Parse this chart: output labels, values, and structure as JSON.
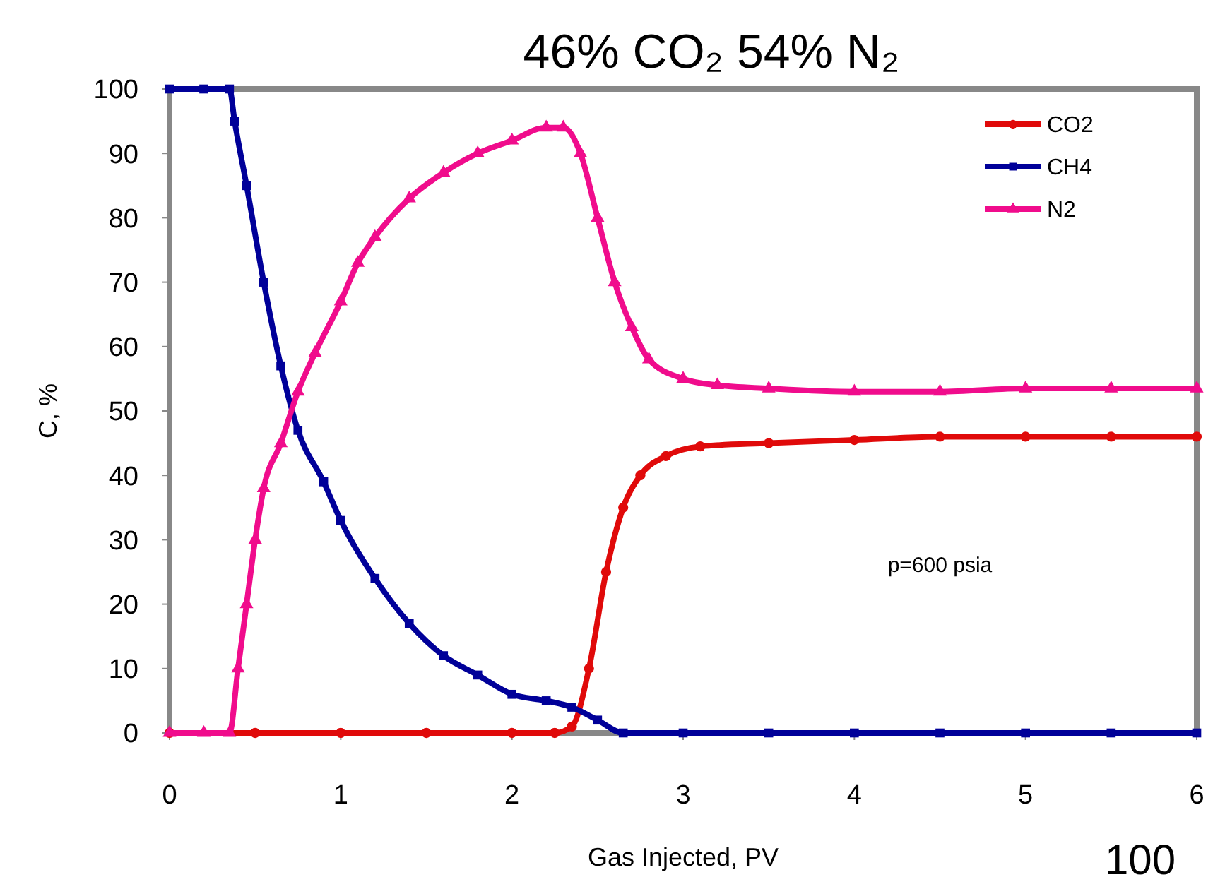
{
  "chart_data": {
    "type": "line",
    "title": "46% CO₂ 54% N₂",
    "xlabel": "Gas Injected, PV",
    "ylabel": "C, %",
    "xlim": [
      0,
      6
    ],
    "xticks": [
      0,
      1,
      2,
      3,
      4,
      5,
      6
    ],
    "ylim": [
      0,
      100
    ],
    "yticks": [
      0,
      10,
      20,
      30,
      40,
      50,
      60,
      70,
      80,
      90,
      100
    ],
    "grid": false,
    "legend": "top right",
    "annotations": [
      "p=600 psia",
      "100"
    ],
    "series": [
      {
        "name": "CO2",
        "color": "#e00a0a",
        "marker": "circle",
        "x": [
          0,
          0.5,
          1,
          1.5,
          2,
          2.25,
          2.35,
          2.45,
          2.55,
          2.65,
          2.75,
          2.9,
          3.1,
          3.5,
          4,
          4.5,
          5,
          5.5,
          6
        ],
        "values": [
          0,
          0,
          0,
          0,
          0,
          0,
          1,
          10,
          25,
          35,
          40,
          43,
          44.5,
          45,
          45.5,
          46,
          46,
          46,
          46
        ]
      },
      {
        "name": "CH4",
        "color": "#000099",
        "marker": "square",
        "x": [
          0,
          0.2,
          0.35,
          0.38,
          0.45,
          0.55,
          0.65,
          0.75,
          0.9,
          1,
          1.2,
          1.4,
          1.6,
          1.8,
          2,
          2.2,
          2.35,
          2.5,
          2.65,
          3,
          3.5,
          4,
          4.5,
          5,
          5.5,
          6
        ],
        "values": [
          100,
          100,
          100,
          95,
          85,
          70,
          57,
          47,
          39,
          33,
          24,
          17,
          12,
          9,
          6,
          5,
          4,
          2,
          0,
          0,
          0,
          0,
          0,
          0,
          0,
          0
        ]
      },
      {
        "name": "N2",
        "color": "#f00c8c",
        "marker": "triangle",
        "x": [
          0,
          0.2,
          0.35,
          0.4,
          0.45,
          0.5,
          0.55,
          0.65,
          0.75,
          0.85,
          1,
          1.1,
          1.2,
          1.4,
          1.6,
          1.8,
          2,
          2.2,
          2.3,
          2.4,
          2.5,
          2.6,
          2.7,
          2.8,
          3,
          3.2,
          3.5,
          4,
          4.5,
          5,
          5.5,
          6
        ],
        "values": [
          0,
          0,
          0,
          10,
          20,
          30,
          38,
          45,
          53,
          59,
          67,
          73,
          77,
          83,
          87,
          90,
          92,
          94,
          94,
          90,
          80,
          70,
          63,
          58,
          55,
          54,
          53.5,
          53,
          53,
          53.5,
          53.5,
          53.5
        ]
      }
    ]
  }
}
